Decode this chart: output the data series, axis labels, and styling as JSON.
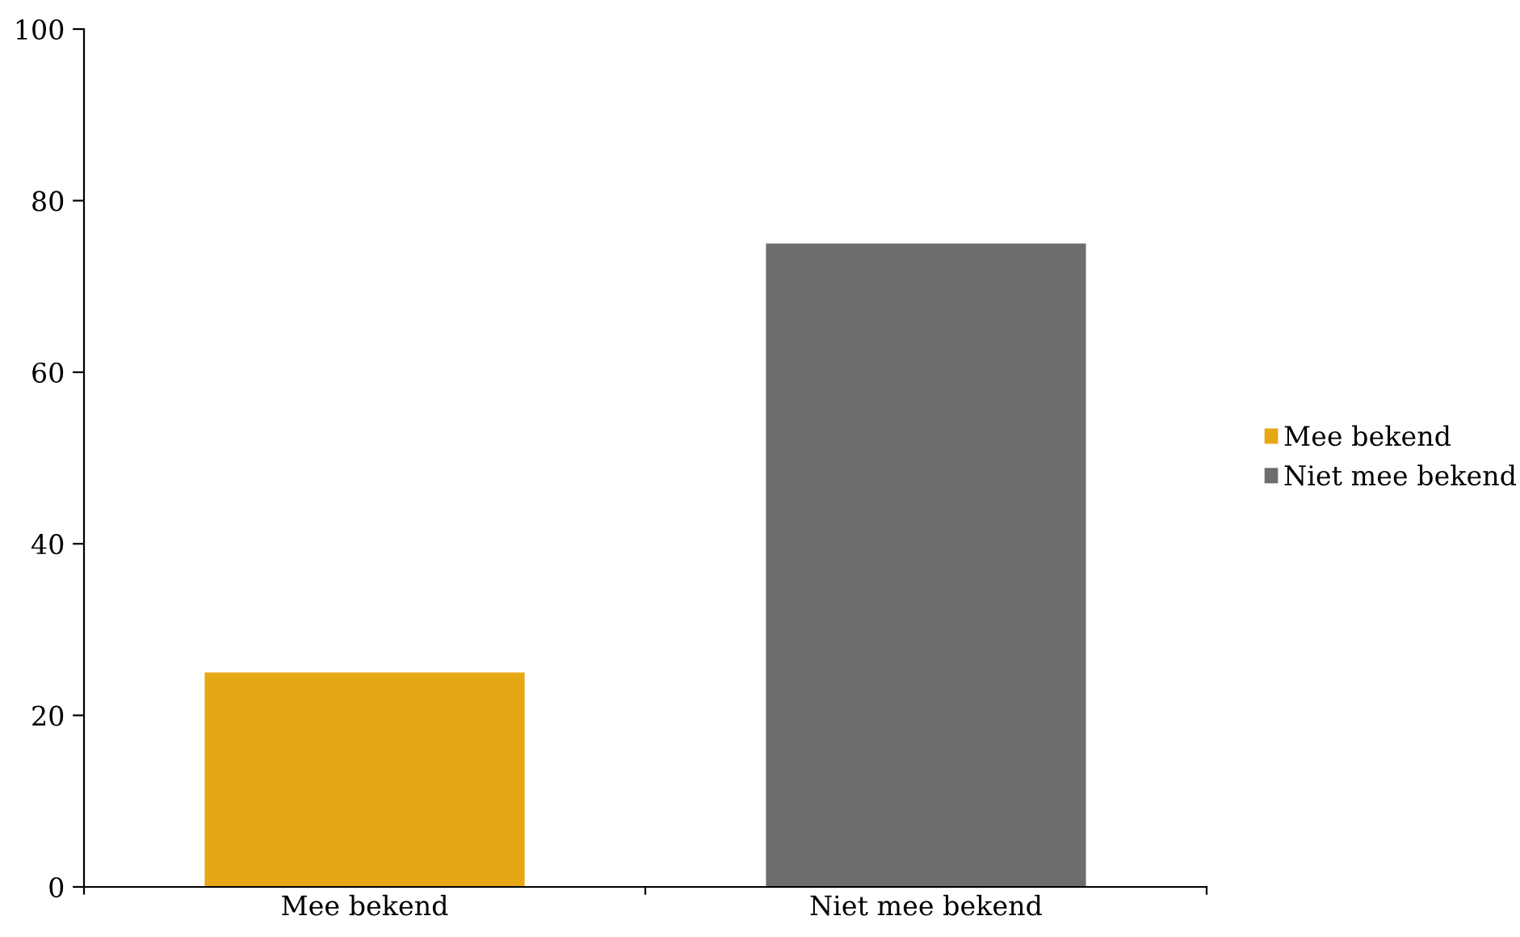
{
  "chart_data": {
    "type": "bar",
    "categories": [
      "Mee bekend",
      "Niet mee bekend"
    ],
    "series": [
      {
        "name": "Mee bekend",
        "color": "#e6a714",
        "values": [
          25,
          null
        ]
      },
      {
        "name": "Niet mee bekend",
        "color": "#6d6d70",
        "values": [
          null,
          75
        ]
      }
    ],
    "ylim": [
      0,
      100
    ],
    "yticks": [
      0,
      20,
      40,
      60,
      80,
      100
    ],
    "grid": false,
    "legend": "right"
  }
}
